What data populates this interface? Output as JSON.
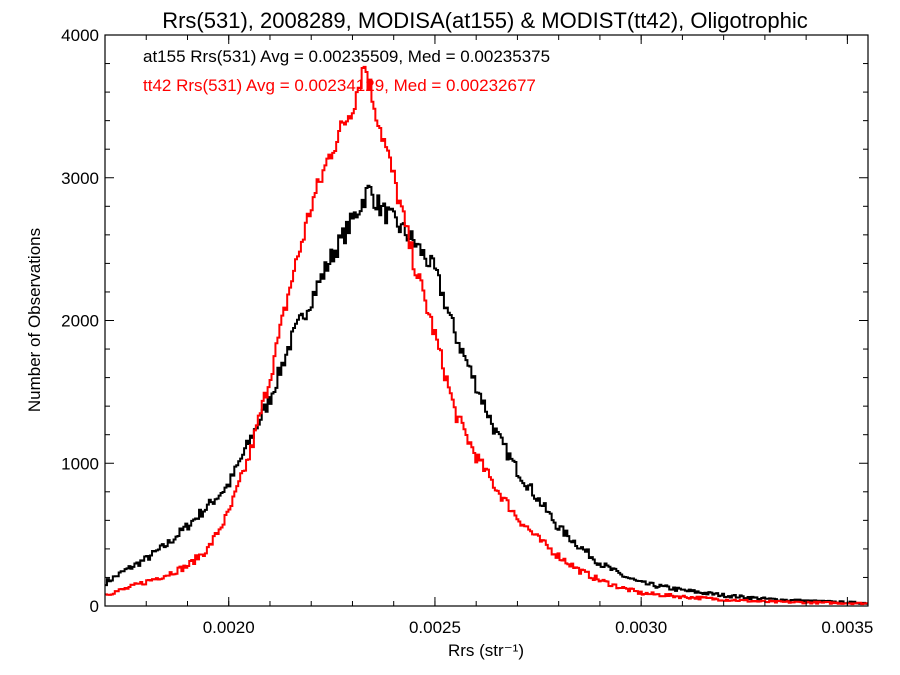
{
  "chart_data": {
    "type": "line",
    "title": "Rrs(531), 2008289, MODISA(at155) & MODIST(tt42), Oligotrophic",
    "xlabel": "Rrs (str⁻¹)",
    "ylabel": "Number of Observations",
    "xlim": [
      0.0017,
      0.00355
    ],
    "ylim": [
      0,
      4000
    ],
    "x_ticks": [
      0.002,
      0.0025,
      0.003,
      0.0035
    ],
    "x_tick_labels": [
      "0.0020",
      "0.0025",
      "0.0030",
      "0.0035"
    ],
    "y_ticks": [
      0,
      1000,
      2000,
      3000,
      4000
    ],
    "y_tick_labels": [
      "0",
      "1000",
      "2000",
      "3000",
      "4000"
    ],
    "grid": false,
    "annotations": [
      {
        "text": "at155 Rrs(531) Avg = 0.00235509, Med = 0.00235375",
        "color": "#000000"
      },
      {
        "text": "tt42 Rrs(531) Avg = 0.00234129, Med = 0.00232677",
        "color": "#ff0000"
      }
    ],
    "series": [
      {
        "color": "#000000",
        "style": "step",
        "x": [
          0.0017,
          0.00175,
          0.0018,
          0.00185,
          0.0019,
          0.00195,
          0.002,
          0.00205,
          0.0021,
          0.00215,
          0.0022,
          0.00225,
          0.0023,
          0.00234,
          0.00237,
          0.0024,
          0.00245,
          0.0025,
          0.00255,
          0.0026,
          0.00265,
          0.0027,
          0.00275,
          0.0028,
          0.00285,
          0.0029,
          0.00295,
          0.003,
          0.0031,
          0.0032,
          0.0033,
          0.0034,
          0.0035,
          0.00355
        ],
        "y": [
          160,
          250,
          330,
          430,
          560,
          700,
          850,
          1150,
          1450,
          1850,
          2150,
          2450,
          2700,
          2920,
          2780,
          2700,
          2550,
          2350,
          1900,
          1550,
          1200,
          950,
          750,
          550,
          420,
          300,
          220,
          160,
          110,
          75,
          50,
          35,
          25,
          20
        ]
      },
      {
        "color": "#ff0000",
        "style": "step",
        "x": [
          0.0017,
          0.00175,
          0.0018,
          0.00185,
          0.0019,
          0.00195,
          0.002,
          0.00205,
          0.0021,
          0.00215,
          0.0022,
          0.00225,
          0.0023,
          0.00233,
          0.00235,
          0.0024,
          0.00245,
          0.0025,
          0.00255,
          0.0026,
          0.00265,
          0.0027,
          0.00275,
          0.0028,
          0.00285,
          0.0029,
          0.00295,
          0.003,
          0.0031,
          0.0032,
          0.0033,
          0.0034,
          0.0035,
          0.00355
        ],
        "y": [
          80,
          120,
          170,
          220,
          280,
          400,
          650,
          1050,
          1600,
          2250,
          2800,
          3200,
          3500,
          3800,
          3550,
          3000,
          2400,
          1900,
          1350,
          1050,
          820,
          620,
          470,
          350,
          250,
          180,
          130,
          90,
          65,
          45,
          30,
          25,
          20,
          18
        ]
      }
    ]
  }
}
